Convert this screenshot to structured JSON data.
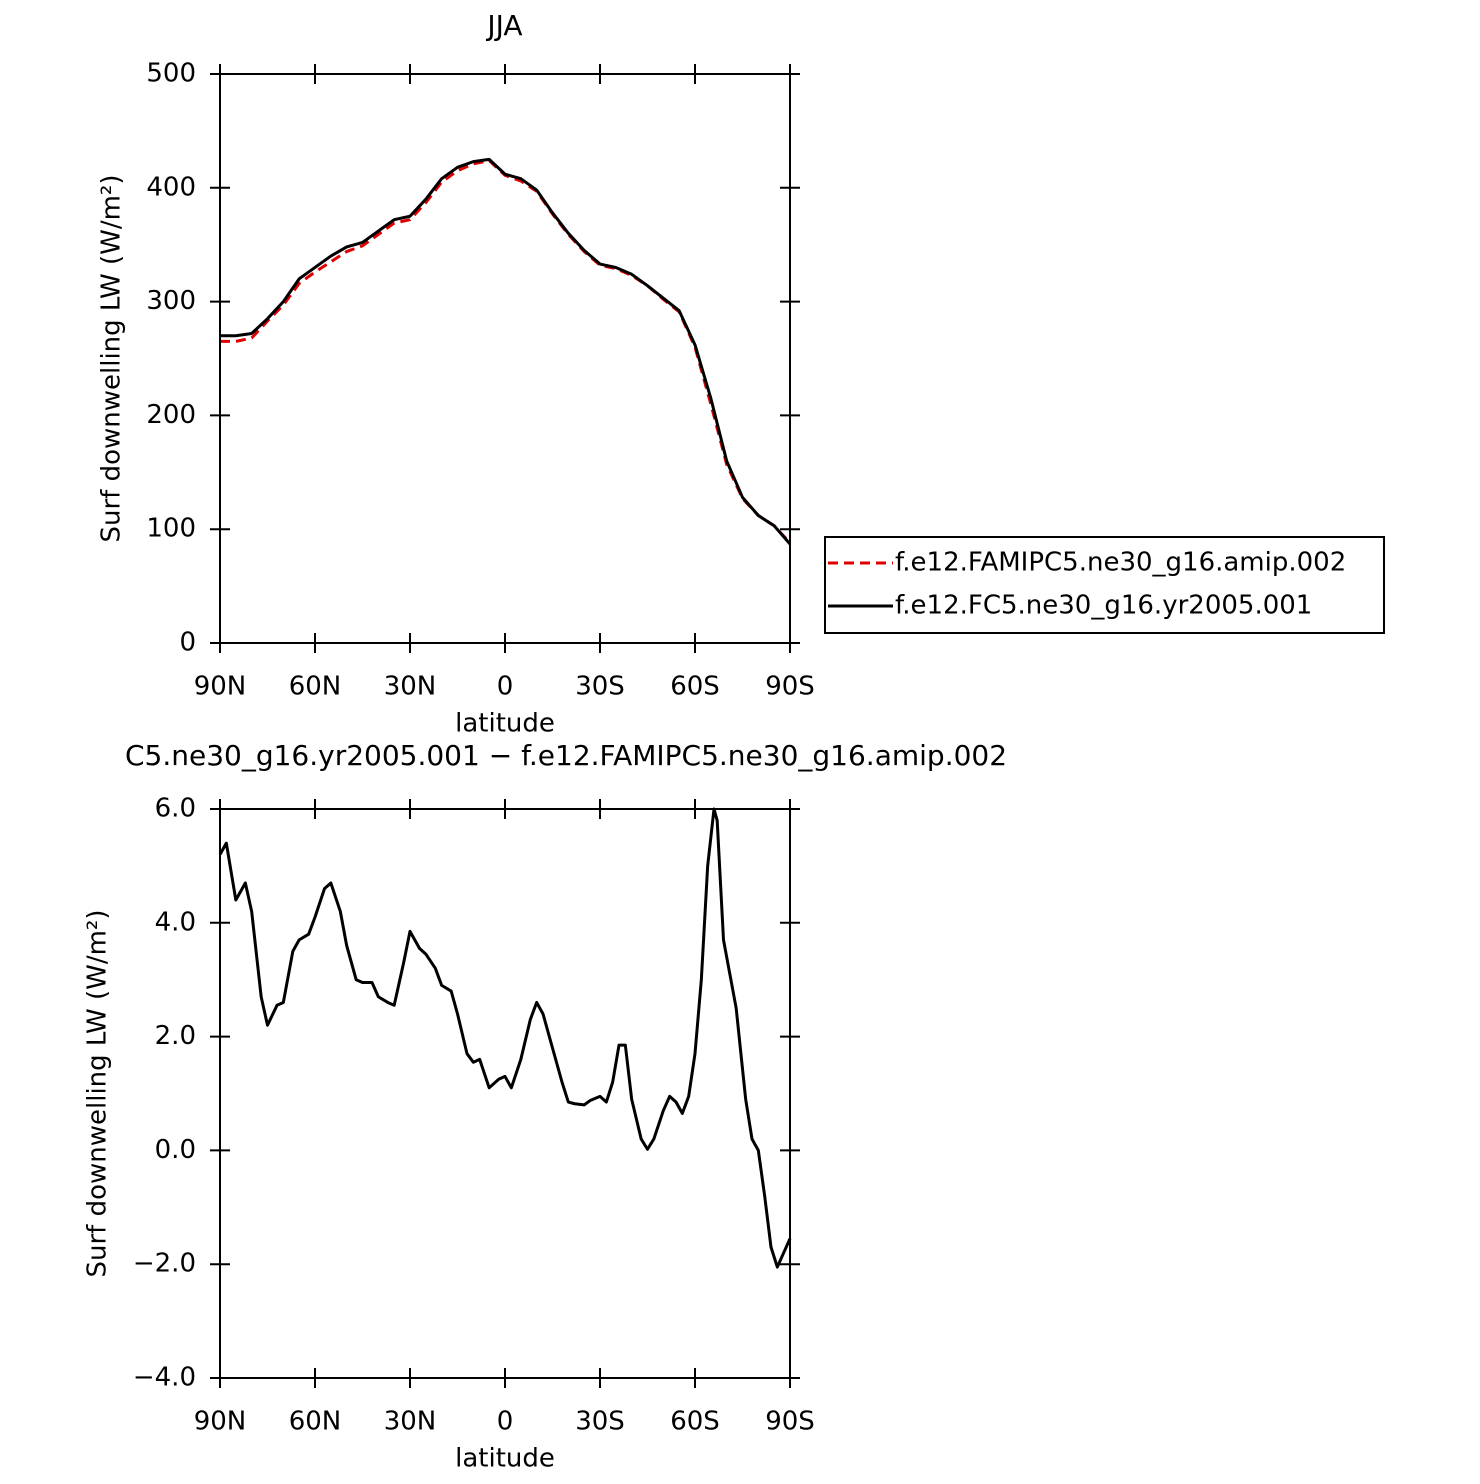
{
  "chart_data": [
    {
      "type": "line",
      "title": "JJA",
      "xlabel": "latitude",
      "ylabel": "Surf downwelling LW (W/m²)",
      "x": [
        90,
        85,
        80,
        75,
        70,
        65,
        60,
        55,
        50,
        45,
        40,
        35,
        30,
        25,
        20,
        15,
        10,
        5,
        0,
        -5,
        -10,
        -15,
        -20,
        -25,
        -30,
        -35,
        -40,
        -45,
        -50,
        -55,
        -60,
        -65,
        -70,
        -75,
        -80,
        -85,
        -90
      ],
      "series": [
        {
          "name": "f.e12.FAMIPC5.ne30_g16.amip.002",
          "color": "#e00000",
          "dash": true,
          "values": [
            265,
            265,
            268,
            283,
            297,
            316,
            326,
            335,
            344,
            349,
            359,
            369,
            372,
            387,
            405,
            415,
            421,
            424,
            411,
            406,
            397,
            377,
            359,
            344,
            332,
            329,
            323,
            314,
            302,
            291,
            260,
            210,
            157,
            127,
            112,
            103,
            88
          ]
        },
        {
          "name": "f.e12.FC5.ne30_g16.yr2005.001",
          "color": "#000000",
          "dash": false,
          "values": [
            270,
            270,
            272,
            285,
            300,
            320,
            330,
            340,
            348,
            352,
            362,
            372,
            375,
            390,
            408,
            418,
            423,
            425,
            412,
            408,
            398,
            378,
            360,
            345,
            333,
            330,
            324,
            314,
            303,
            292,
            262,
            215,
            160,
            128,
            112,
            103,
            87
          ]
        }
      ],
      "xlim": [
        90,
        -90
      ],
      "xticks": [
        {
          "value": 90,
          "label": "90N"
        },
        {
          "value": 60,
          "label": "60N"
        },
        {
          "value": 30,
          "label": "30N"
        },
        0,
        {
          "value": -30,
          "label": "30S"
        },
        {
          "value": -60,
          "label": "60S"
        },
        {
          "value": -90,
          "label": "90S"
        }
      ],
      "ylim": [
        0,
        500
      ],
      "yticks": [
        0,
        100,
        200,
        300,
        400,
        500
      ]
    },
    {
      "type": "line",
      "title": "C5.ne30_g16.yr2005.001 − f.e12.FAMIPC5.ne30_g16.amip.002",
      "xlabel": "latitude",
      "ylabel": "Surf downwelling LW (W/m²)",
      "x": [
        90,
        88,
        85,
        82,
        80,
        77,
        75,
        72,
        70,
        67,
        65,
        62,
        60,
        57,
        55,
        52,
        50,
        47,
        45,
        42,
        40,
        37,
        35,
        32,
        30,
        27,
        25,
        22,
        20,
        17,
        15,
        12,
        10,
        8,
        5,
        2,
        0,
        -2,
        -5,
        -8,
        -10,
        -12,
        -15,
        -18,
        -20,
        -22,
        -25,
        -27,
        -30,
        -32,
        -34,
        -36,
        -38,
        -40,
        -43,
        -45,
        -47,
        -50,
        -52,
        -54,
        -56,
        -58,
        -60,
        -62,
        -64,
        -66,
        -67,
        -69,
        -71,
        -73,
        -76,
        -78,
        -80,
        -82,
        -84,
        -86,
        -88,
        -90
      ],
      "series": [
        {
          "color": "#000000",
          "dash": false,
          "values": [
            5.2,
            5.4,
            4.4,
            4.7,
            4.2,
            2.7,
            2.2,
            2.55,
            2.6,
            3.5,
            3.7,
            3.8,
            4.1,
            4.6,
            4.7,
            4.2,
            3.6,
            3.0,
            2.95,
            2.95,
            2.7,
            2.6,
            2.55,
            3.3,
            3.85,
            3.55,
            3.45,
            3.2,
            2.9,
            2.8,
            2.4,
            1.7,
            1.55,
            1.6,
            1.1,
            1.25,
            1.3,
            1.1,
            1.6,
            2.3,
            2.6,
            2.4,
            1.8,
            1.2,
            0.85,
            0.82,
            0.8,
            0.88,
            0.95,
            0.85,
            1.2,
            1.85,
            1.85,
            0.9,
            0.2,
            0.02,
            0.2,
            0.7,
            0.95,
            0.85,
            0.65,
            0.95,
            1.7,
            3.0,
            5.0,
            6.0,
            5.8,
            3.7,
            3.1,
            2.5,
            0.9,
            0.2,
            0.0,
            -0.8,
            -1.7,
            -2.05,
            -1.8,
            -1.55
          ]
        }
      ],
      "xlim": [
        90,
        -90
      ],
      "xticks": [
        {
          "value": 90,
          "label": "90N"
        },
        {
          "value": 60,
          "label": "60N"
        },
        {
          "value": 30,
          "label": "30N"
        },
        0,
        {
          "value": -30,
          "label": "30S"
        },
        {
          "value": -60,
          "label": "60S"
        },
        {
          "value": -90,
          "label": "90S"
        }
      ],
      "ylim": [
        -4,
        6
      ],
      "yticks": [
        {
          "value": 6,
          "label": "6.0"
        },
        {
          "value": 4,
          "label": "4.0"
        },
        {
          "value": 2,
          "label": "2.0"
        },
        {
          "value": 0,
          "label": "0.0"
        },
        {
          "value": -2,
          "label": "−2.0"
        },
        {
          "value": -4,
          "label": "−4.0"
        }
      ]
    }
  ]
}
